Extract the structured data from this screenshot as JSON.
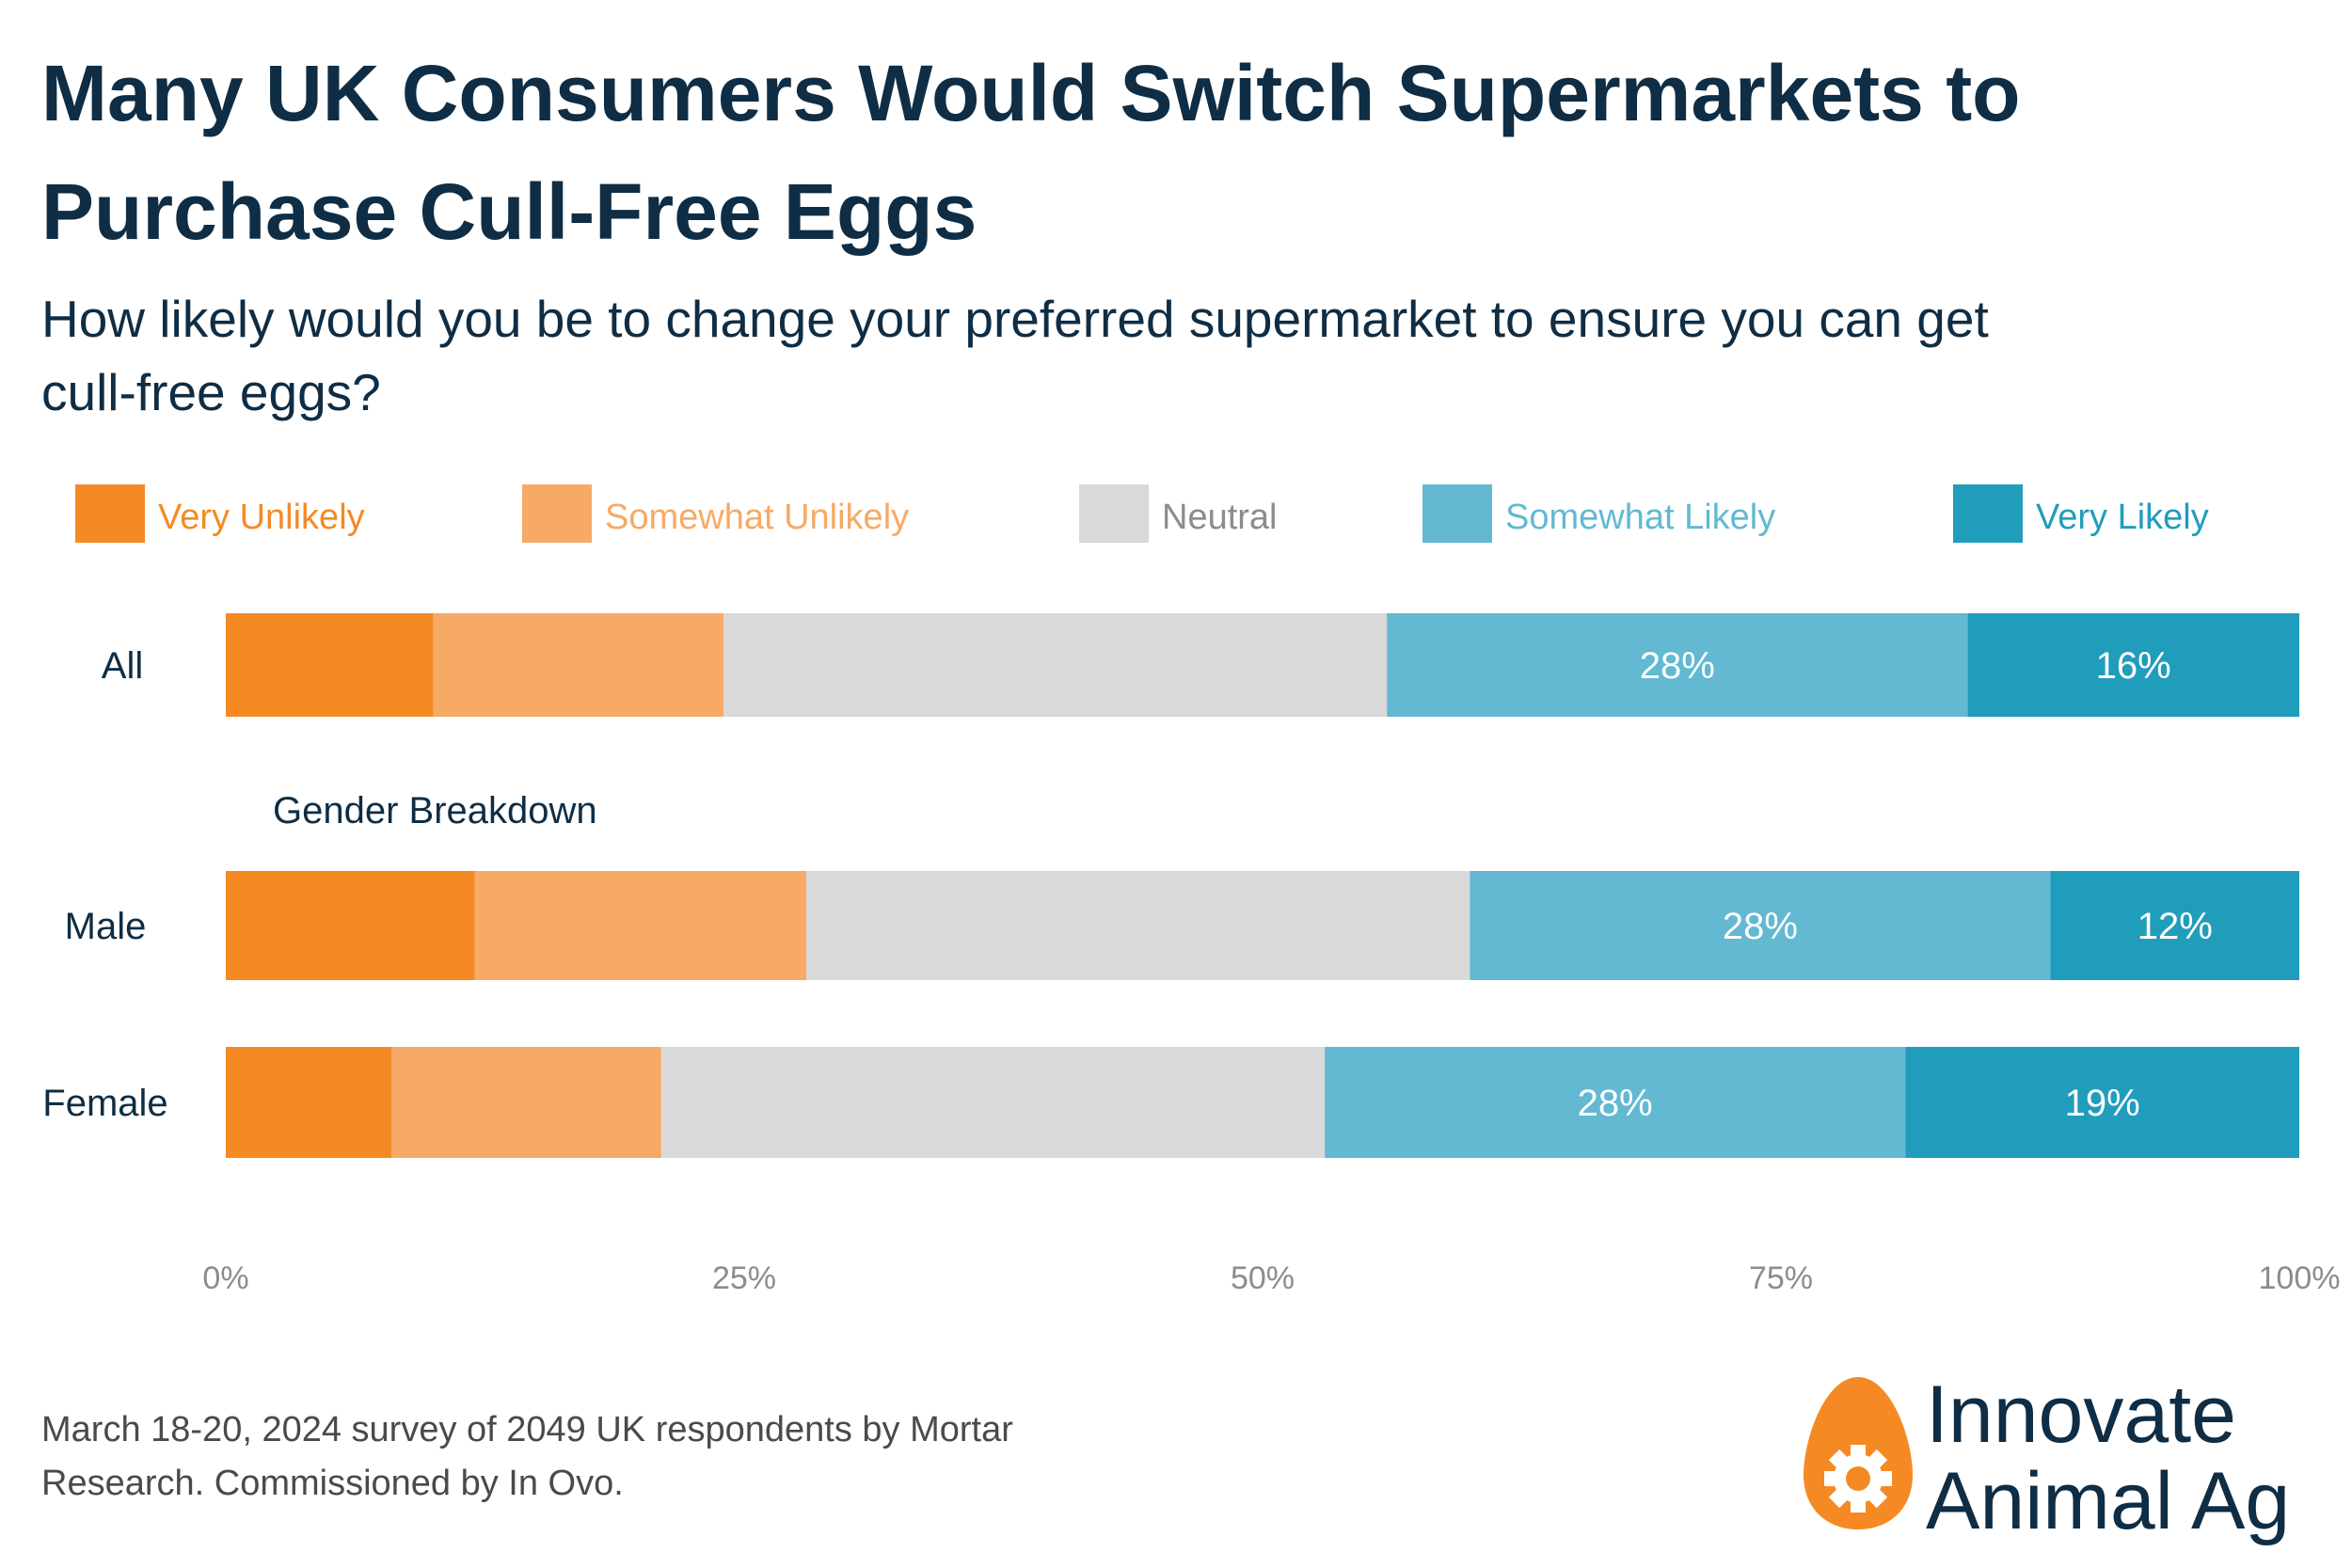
{
  "title": "Many UK Consumers Would Switch Supermarkets to Purchase Cull-Free Eggs",
  "subtitle": "How likely would you be to change your preferred supermarket to ensure you can get cull-free eggs?",
  "colors": {
    "very_unlikely": "#f58a24",
    "somewhat_unlikely": "#f6aa66",
    "neutral": "#d9d9d9",
    "somewhat_likely": "#62b9d1",
    "very_likely": "#219dbc",
    "title_text": "#0f2d44",
    "axis_text": "#8c8c8c"
  },
  "chart_data": {
    "type": "bar",
    "orientation": "horizontal",
    "stacked": true,
    "categories": [
      "All",
      "Male",
      "Female"
    ],
    "group_label": "Gender Breakdown",
    "series": [
      {
        "name": "Very Unlikely",
        "values": [
          10,
          12,
          8
        ]
      },
      {
        "name": "Somewhat Unlikely",
        "values": [
          14,
          16,
          13
        ]
      },
      {
        "name": "Neutral",
        "values": [
          32,
          32,
          32
        ]
      },
      {
        "name": "Somewhat Likely",
        "values": [
          28,
          28,
          28
        ]
      },
      {
        "name": "Very Likely",
        "values": [
          16,
          12,
          19
        ]
      }
    ],
    "labeled_series": [
      "Somewhat Likely",
      "Very Likely"
    ],
    "xlim": [
      0,
      100
    ],
    "x_ticks": [
      "0%",
      "25%",
      "50%",
      "75%",
      "100%"
    ],
    "legend_position": "top",
    "grid": false
  },
  "footnote": "March 18-20, 2024 survey of 2049 UK respondents by Mortar Research. Commissioned by In Ovo.",
  "logo": {
    "line1": "Innovate",
    "line2": "Animal Ag"
  }
}
